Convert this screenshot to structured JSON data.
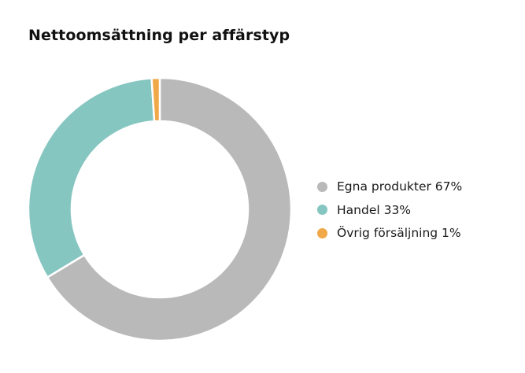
{
  "chart_data": {
    "type": "pie",
    "variant": "donut",
    "title": "Nettoomsättning per affärstyp",
    "categories": [
      "Egna produkter",
      "Handel",
      "Övrig försäljning"
    ],
    "values": [
      67,
      33,
      1
    ],
    "unit": "%",
    "legend_labels": [
      "Egna produkter 67%",
      "Handel 33%",
      "Övrig försäljning 1%"
    ],
    "colors": [
      "#b9b9b9",
      "#86c6c1",
      "#f0a848"
    ],
    "legend_position": "right"
  }
}
